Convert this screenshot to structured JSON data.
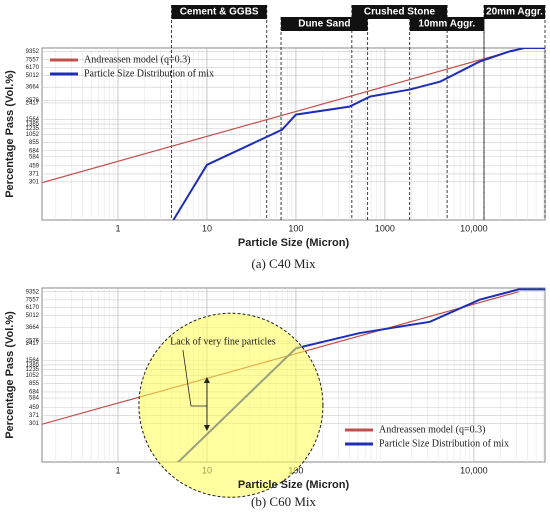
{
  "chart_data": [
    {
      "type": "line",
      "caption": "(a) C40 Mix",
      "xlabel": "Particle Size (Micron)",
      "ylabel": "Percentage Pass (Vol.%)",
      "xscale": "log",
      "yscale": "log",
      "xlim": [
        0.14,
        63000
      ],
      "ylim": [
        110,
        10300
      ],
      "xticks": [
        1,
        10,
        100,
        1000,
        {
          "value": 10000,
          "label": "10,000"
        }
      ],
      "yticks": [
        9352,
        7557,
        6170,
        5012,
        3664,
        2576,
        2417,
        1564,
        1385,
        1235,
        1052,
        855,
        684,
        584,
        459,
        371,
        301
      ],
      "grid": true,
      "legend": "upper left",
      "bands": [
        {
          "label": "Cement & GGBS",
          "range": [
            4,
            47
          ]
        },
        {
          "label": "Dune Sand",
          "range": [
            68,
            640
          ]
        },
        {
          "label": "Crushed Stone",
          "range": [
            425,
            5000
          ]
        },
        {
          "label": "10mm Aggr.",
          "range": [
            1900,
            13000
          ]
        },
        {
          "label": "20mm Aggr.",
          "range": [
            13000,
            63000
          ]
        }
      ],
      "series": [
        {
          "name": "Andreassen model (q=0.3)",
          "color": "#c0504d",
          "x": [
            0.14,
            25000
          ],
          "values": [
            295,
            9352
          ]
        },
        {
          "name": "Particle Size Distribution of mix",
          "color": "#1f2fb5",
          "x": [
            4.2,
            10,
            70,
            100,
            400,
            680,
            1900,
            4200,
            11600,
            25000,
            37000,
            63000
          ],
          "values": [
            110,
            472,
            1194,
            1775,
            2190,
            2860,
            3440,
            4250,
            7200,
            9400,
            10300,
            10300
          ]
        }
      ]
    },
    {
      "type": "line",
      "caption": "(b) C60 Mix",
      "xlabel": "Particle Size (Micron)",
      "ylabel": "Percentage Pass (Vol.%)",
      "xscale": "log",
      "yscale": "log",
      "xlim": [
        0.14,
        63000
      ],
      "ylim": [
        110,
        10300
      ],
      "xticks": [
        1,
        10,
        100,
        {
          "value": 10000,
          "label": "10,000"
        }
      ],
      "yticks": [
        9352,
        7557,
        6170,
        5012,
        3664,
        2576,
        2417,
        1564,
        1385,
        1235,
        1052,
        855,
        684,
        584,
        459,
        371,
        301
      ],
      "grid": true,
      "legend": "lower right",
      "annotation": "Lack of very fine particles",
      "series": [
        {
          "name": "Andreassen model (q=0.3)",
          "color": "#c0504d",
          "x": [
            0.14,
            32000
          ],
          "values": [
            295,
            9352
          ]
        },
        {
          "name": "Particle Size Distribution of mix",
          "color": "#1f2fb5",
          "x": [
            4.5,
            100,
            520,
            3200,
            11600,
            32000,
            63000
          ],
          "values": [
            104,
            2140,
            3180,
            4260,
            7600,
            9950,
            9950
          ]
        }
      ]
    }
  ]
}
